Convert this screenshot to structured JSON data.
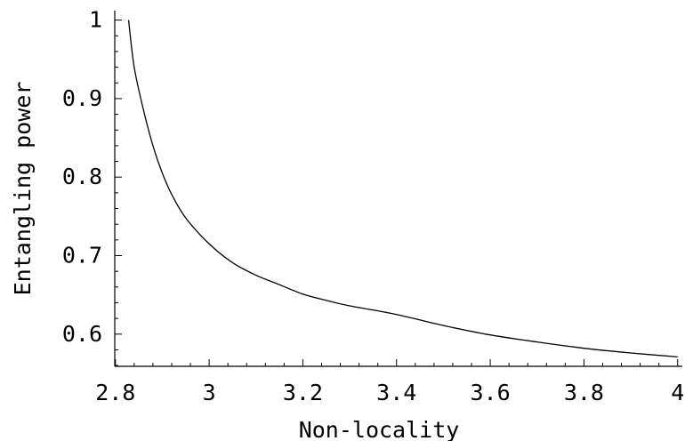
{
  "chart_data": {
    "type": "line",
    "title": "",
    "xlabel": "Non-locality",
    "ylabel": "Entangling power",
    "xlim": [
      2.7985,
      4.01
    ],
    "ylim": [
      0.559,
      1.012
    ],
    "grid": false,
    "x_ticks": [
      2.8,
      3.0,
      3.2,
      3.4,
      3.6,
      3.8,
      4.0
    ],
    "x_tick_labels": [
      "2.8",
      "3",
      "3.2",
      "3.4",
      "3.6",
      "3.8",
      "4"
    ],
    "y_ticks": [
      0.6,
      0.7,
      0.8,
      0.9,
      1.0
    ],
    "y_tick_labels": [
      "0.6",
      "0.7",
      "0.8",
      "0.9",
      "1"
    ],
    "series": [
      {
        "color": "#000000",
        "x": [
          2.828,
          2.84,
          2.86,
          2.88,
          2.9,
          2.92,
          2.95,
          3.0,
          3.05,
          3.1,
          3.15,
          3.2,
          3.25,
          3.3,
          3.4,
          3.5,
          3.6,
          3.7,
          3.8,
          3.9,
          4.0
        ],
        "y": [
          1.0,
          0.94,
          0.885,
          0.84,
          0.805,
          0.778,
          0.748,
          0.715,
          0.691,
          0.675,
          0.663,
          0.651,
          0.643,
          0.636,
          0.625,
          0.611,
          0.599,
          0.59,
          0.582,
          0.576,
          0.571
        ]
      }
    ]
  }
}
